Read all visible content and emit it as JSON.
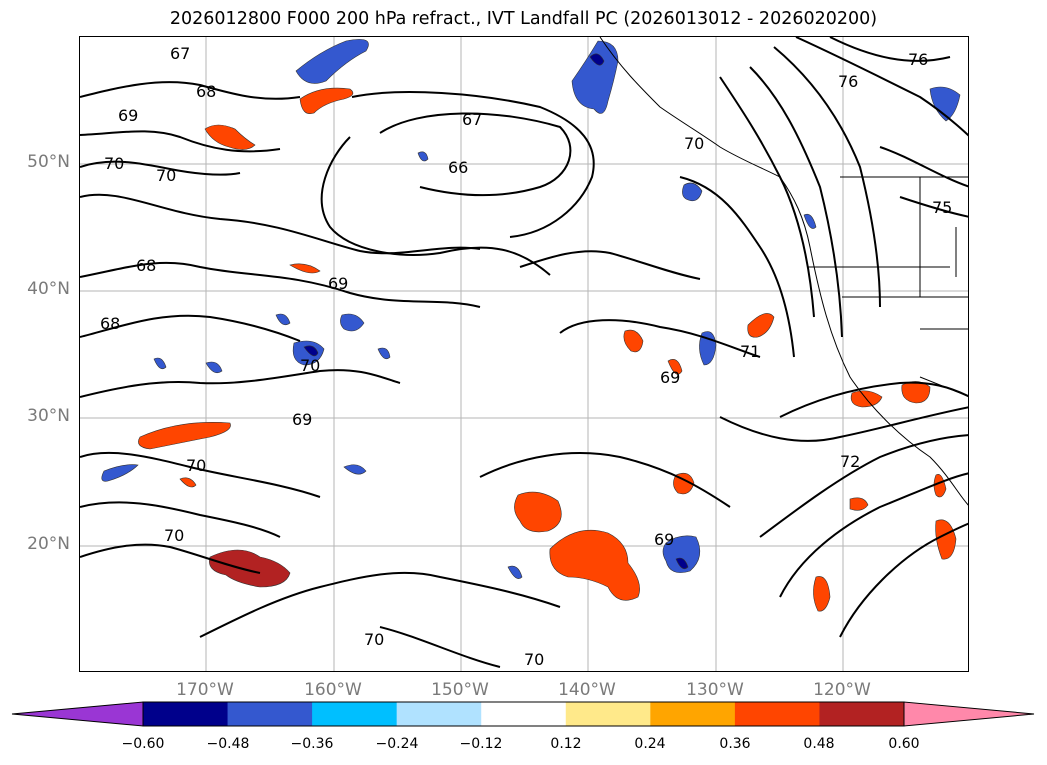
{
  "title": "2026012800 F000 200 hPa refract., IVT Landfall PC (2026013012 - 2026020200)",
  "map": {
    "lat_labels": [
      "50°N",
      "40°N",
      "30°N",
      "20°N"
    ],
    "lon_labels": [
      "170°W",
      "160°W",
      "150°W",
      "140°W",
      "130°W",
      "120°W"
    ],
    "grid": true,
    "contour_labels": [
      {
        "text": "67"
      },
      {
        "text": "68"
      },
      {
        "text": "69"
      },
      {
        "text": "70"
      },
      {
        "text": "70"
      },
      {
        "text": "67"
      },
      {
        "text": "66"
      },
      {
        "text": "70"
      },
      {
        "text": "76"
      },
      {
        "text": "76"
      },
      {
        "text": "75"
      },
      {
        "text": "68"
      },
      {
        "text": "69"
      },
      {
        "text": "68"
      },
      {
        "text": "70"
      },
      {
        "text": "69"
      },
      {
        "text": "70"
      },
      {
        "text": "70"
      },
      {
        "text": "69"
      },
      {
        "text": "71"
      },
      {
        "text": "72"
      },
      {
        "text": "69"
      },
      {
        "text": "70"
      },
      {
        "text": "70"
      }
    ]
  },
  "colorbar": {
    "ticks": [
      "−0.60",
      "−0.48",
      "−0.36",
      "−0.24",
      "−0.12",
      "0.12",
      "0.24",
      "0.36",
      "0.48",
      "0.60"
    ],
    "colors": [
      "#9a36d4",
      "#00008b",
      "#3458cf",
      "#00bfff",
      "#b0e2ff",
      "#ffffff",
      "#ffe98a",
      "#ffa500",
      "#ff4500",
      "#b22222",
      "#ff88aa"
    ],
    "extend": "both"
  }
}
